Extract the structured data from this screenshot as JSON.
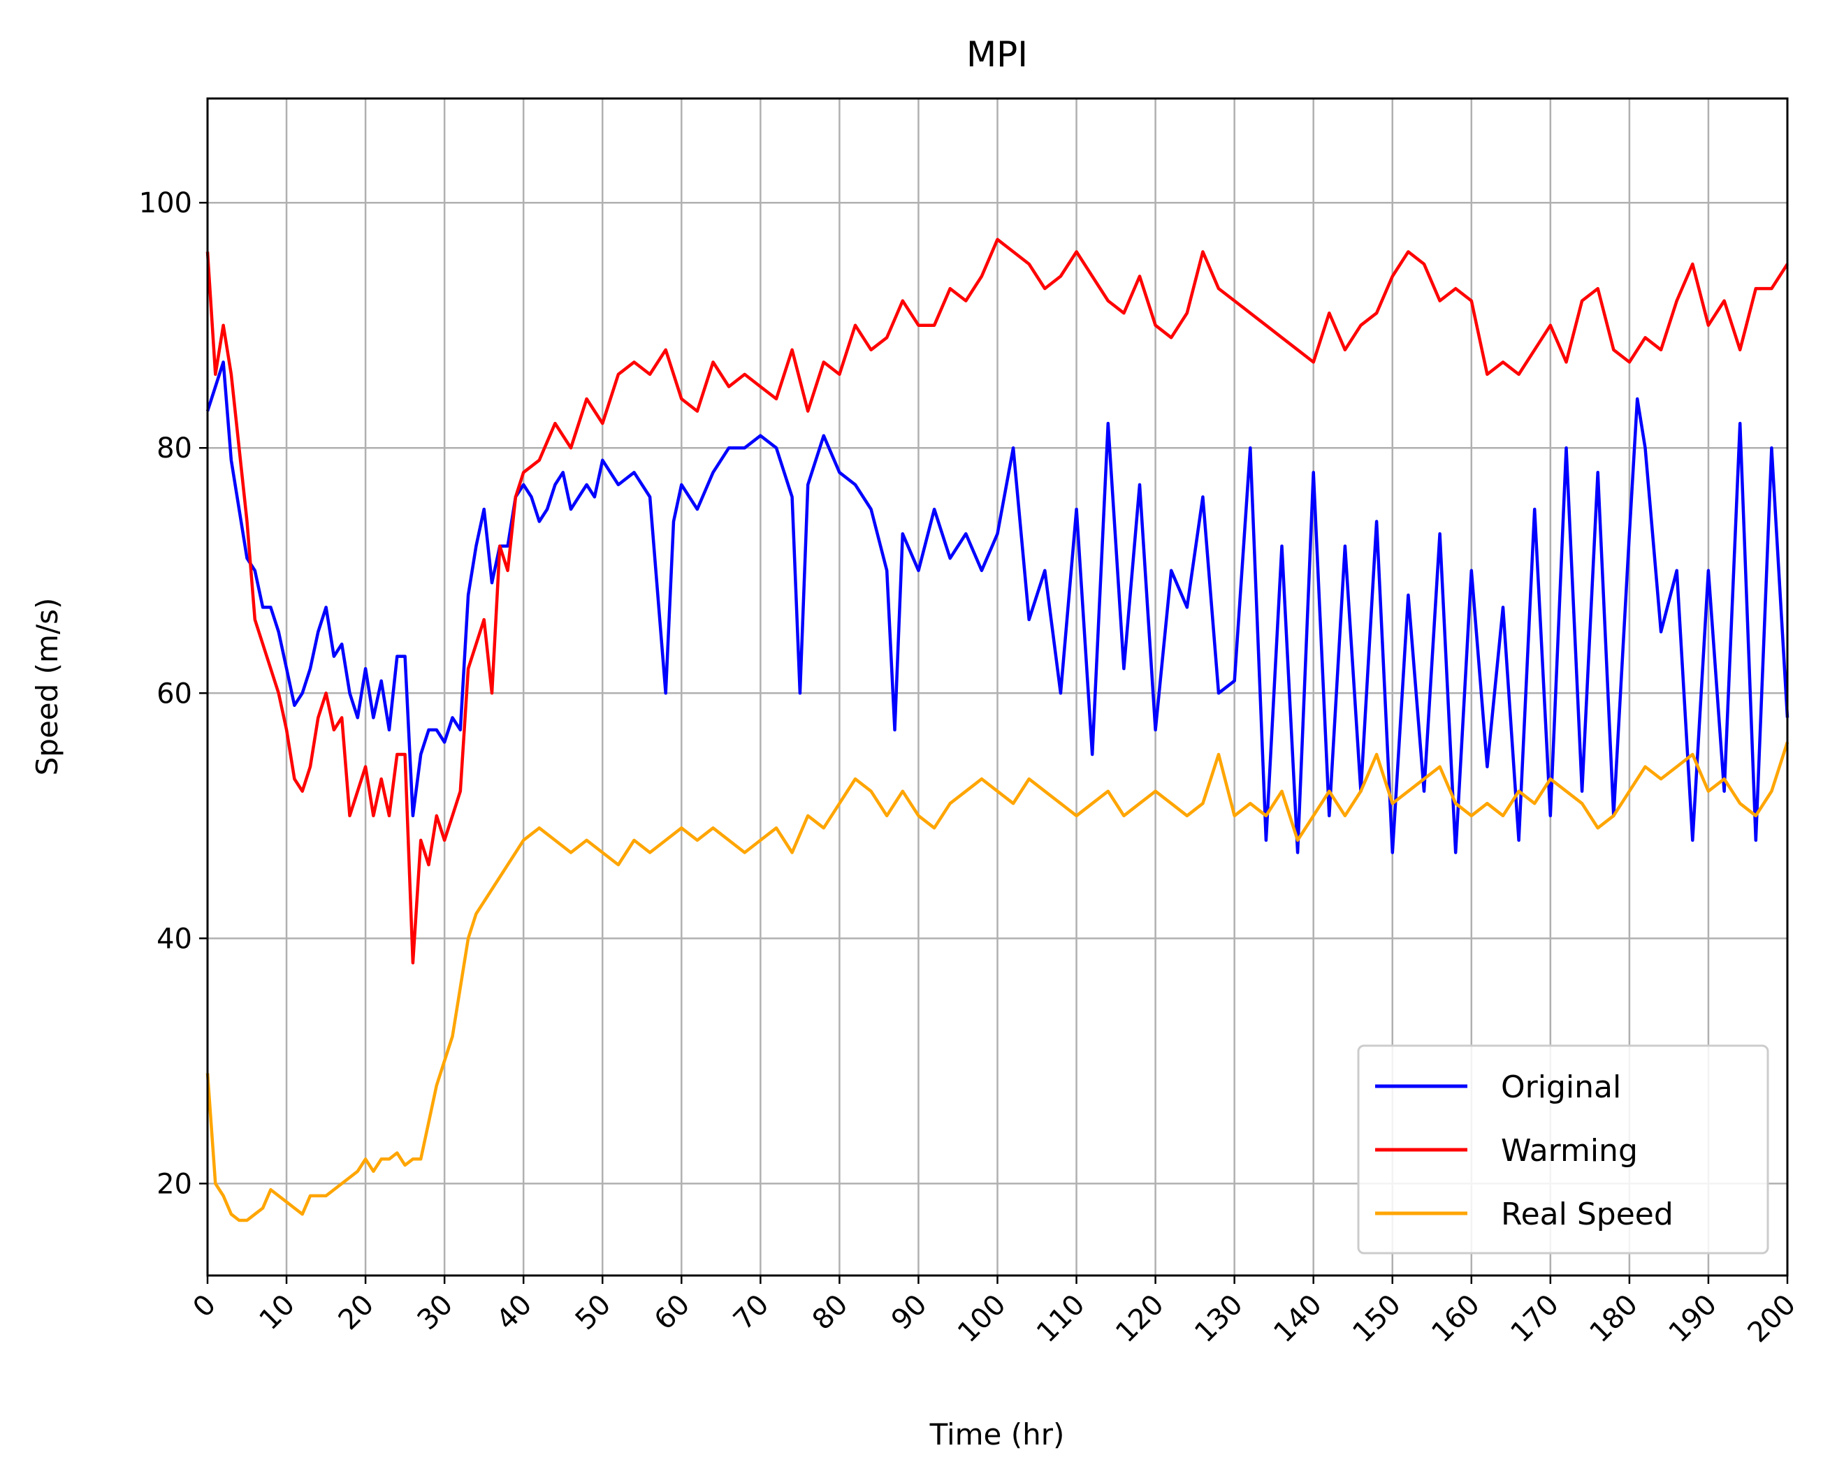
{
  "chart_data": {
    "type": "line",
    "title": "MPI",
    "xlabel": "Time (hr)",
    "ylabel": "Speed (m/s)",
    "xlim": [
      0,
      200
    ],
    "ylim": [
      12.5,
      108.5
    ],
    "xticks": [
      0,
      10,
      20,
      30,
      40,
      50,
      60,
      70,
      80,
      90,
      100,
      110,
      120,
      130,
      140,
      150,
      160,
      170,
      180,
      190,
      200
    ],
    "yticks": [
      20,
      40,
      60,
      80,
      100
    ],
    "grid": true,
    "legend_position": "lower-right",
    "series": [
      {
        "name": "Original",
        "color": "#0000ff",
        "x": [
          0,
          1,
          2,
          3,
          4,
          5,
          6,
          7,
          8,
          9,
          10,
          11,
          12,
          13,
          14,
          15,
          16,
          17,
          18,
          19,
          20,
          21,
          22,
          23,
          24,
          25,
          26,
          27,
          28,
          29,
          30,
          31,
          32,
          33,
          34,
          35,
          36,
          37,
          38,
          39,
          40,
          41,
          42,
          43,
          44,
          45,
          46,
          47,
          48,
          49,
          50,
          52,
          54,
          56,
          58,
          59,
          60,
          62,
          64,
          66,
          68,
          70,
          72,
          74,
          75,
          76,
          78,
          80,
          82,
          84,
          86,
          87,
          88,
          90,
          92,
          94,
          96,
          98,
          100,
          102,
          104,
          106,
          108,
          110,
          112,
          114,
          116,
          118,
          120,
          122,
          124,
          126,
          128,
          130,
          132,
          134,
          136,
          138,
          140,
          142,
          144,
          146,
          148,
          150,
          152,
          154,
          156,
          158,
          160,
          162,
          164,
          166,
          168,
          170,
          172,
          174,
          176,
          178,
          180,
          181,
          182,
          184,
          186,
          188,
          190,
          192,
          194,
          196,
          198,
          200
        ],
        "y": [
          83,
          85,
          87,
          79,
          75,
          71,
          70,
          67,
          67,
          65,
          62,
          59,
          60,
          62,
          65,
          67,
          63,
          64,
          60,
          58,
          62,
          58,
          61,
          57,
          63,
          63,
          50,
          55,
          57,
          57,
          56,
          58,
          57,
          68,
          72,
          75,
          69,
          72,
          72,
          76,
          77,
          76,
          74,
          75,
          77,
          78,
          75,
          76,
          77,
          76,
          79,
          77,
          78,
          76,
          60,
          74,
          77,
          75,
          78,
          80,
          80,
          81,
          80,
          76,
          60,
          77,
          81,
          78,
          77,
          75,
          70,
          57,
          73,
          70,
          75,
          71,
          73,
          70,
          73,
          80,
          66,
          70,
          60,
          75,
          55,
          82,
          62,
          77,
          57,
          70,
          67,
          76,
          60,
          61,
          80,
          48,
          72,
          47,
          78,
          50,
          72,
          52,
          74,
          47,
          68,
          52,
          73,
          47,
          70,
          54,
          67,
          48,
          75,
          50,
          80,
          52,
          78,
          50,
          73,
          84,
          80,
          65,
          70,
          48,
          70,
          52,
          82,
          48,
          80,
          58
        ]
      },
      {
        "name": "Warming",
        "color": "#ff0000",
        "x": [
          0,
          1,
          2,
          3,
          4,
          5,
          6,
          7,
          8,
          9,
          10,
          11,
          12,
          13,
          14,
          15,
          16,
          17,
          18,
          19,
          20,
          21,
          22,
          23,
          24,
          25,
          26,
          27,
          28,
          29,
          30,
          31,
          32,
          33,
          34,
          35,
          36,
          37,
          38,
          39,
          40,
          42,
          44,
          46,
          48,
          50,
          52,
          54,
          56,
          58,
          60,
          62,
          64,
          66,
          68,
          70,
          72,
          74,
          76,
          78,
          80,
          82,
          84,
          86,
          88,
          90,
          92,
          94,
          96,
          98,
          100,
          102,
          104,
          106,
          108,
          110,
          112,
          114,
          116,
          118,
          120,
          122,
          124,
          126,
          128,
          130,
          132,
          134,
          136,
          138,
          140,
          142,
          144,
          146,
          148,
          150,
          152,
          154,
          156,
          158,
          160,
          162,
          164,
          166,
          168,
          170,
          172,
          174,
          176,
          178,
          180,
          182,
          184,
          186,
          188,
          190,
          192,
          194,
          196,
          198,
          200
        ],
        "y": [
          96,
          86,
          90,
          86,
          80,
          74,
          66,
          64,
          62,
          60,
          57,
          53,
          52,
          54,
          58,
          60,
          57,
          58,
          50,
          52,
          54,
          50,
          53,
          50,
          55,
          55,
          38,
          48,
          46,
          50,
          48,
          50,
          52,
          62,
          64,
          66,
          60,
          72,
          70,
          76,
          78,
          79,
          82,
          80,
          84,
          82,
          86,
          87,
          86,
          88,
          84,
          83,
          87,
          85,
          86,
          85,
          84,
          88,
          83,
          87,
          86,
          90,
          88,
          89,
          92,
          90,
          90,
          93,
          92,
          94,
          97,
          96,
          95,
          93,
          94,
          96,
          94,
          92,
          91,
          94,
          90,
          89,
          91,
          96,
          93,
          92,
          91,
          90,
          89,
          88,
          87,
          91,
          88,
          90,
          91,
          94,
          96,
          95,
          92,
          93,
          92,
          86,
          87,
          86,
          88,
          90,
          87,
          92,
          93,
          88,
          87,
          89,
          88,
          92,
          95,
          90,
          92,
          88,
          93,
          93,
          95
        ]
      },
      {
        "name": "Real Speed",
        "color": "#ffa500",
        "x": [
          0,
          1,
          2,
          3,
          4,
          5,
          6,
          7,
          8,
          9,
          10,
          11,
          12,
          13,
          14,
          15,
          16,
          17,
          18,
          19,
          20,
          21,
          22,
          23,
          24,
          25,
          26,
          27,
          28,
          29,
          30,
          31,
          32,
          33,
          34,
          35,
          36,
          37,
          38,
          39,
          40,
          42,
          44,
          46,
          48,
          50,
          52,
          54,
          56,
          58,
          60,
          62,
          64,
          66,
          68,
          70,
          72,
          74,
          76,
          78,
          80,
          82,
          84,
          86,
          88,
          90,
          92,
          94,
          96,
          98,
          100,
          102,
          104,
          106,
          108,
          110,
          112,
          114,
          116,
          118,
          120,
          122,
          124,
          126,
          128,
          130,
          132,
          134,
          136,
          138,
          140,
          142,
          144,
          146,
          148,
          150,
          152,
          154,
          156,
          158,
          160,
          162,
          164,
          166,
          168,
          170,
          172,
          174,
          176,
          178,
          180,
          182,
          184,
          186,
          188,
          190,
          192,
          194,
          196,
          198,
          200
        ],
        "y": [
          29,
          20,
          19,
          17.5,
          17,
          17,
          17.5,
          18,
          19.5,
          19,
          18.5,
          18,
          17.5,
          19,
          19,
          19,
          19.5,
          20,
          20.5,
          21,
          22,
          21,
          22,
          22,
          22.5,
          21.5,
          22,
          22,
          25,
          28,
          30,
          32,
          36,
          40,
          42,
          43,
          44,
          45,
          46,
          47,
          48,
          49,
          48,
          47,
          48,
          47,
          46,
          48,
          47,
          48,
          49,
          48,
          49,
          48,
          47,
          48,
          49,
          47,
          50,
          49,
          51,
          53,
          52,
          50,
          52,
          50,
          49,
          51,
          52,
          53,
          52,
          51,
          53,
          52,
          51,
          50,
          51,
          52,
          50,
          51,
          52,
          51,
          50,
          51,
          55,
          50,
          51,
          50,
          52,
          48,
          50,
          52,
          50,
          52,
          55,
          51,
          52,
          53,
          54,
          51,
          50,
          51,
          50,
          52,
          51,
          53,
          52,
          51,
          49,
          50,
          52,
          54,
          53,
          54,
          55,
          52,
          53,
          51,
          50,
          52,
          56
        ]
      }
    ]
  }
}
